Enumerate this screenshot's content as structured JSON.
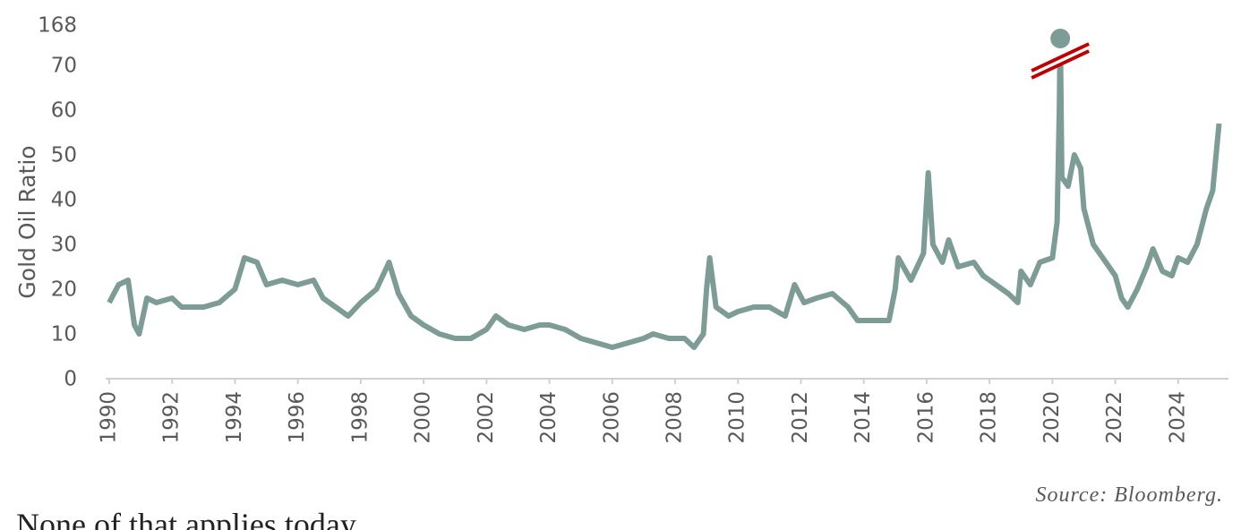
{
  "chart_data": {
    "type": "line",
    "y_label": "Gold Oil Ratio",
    "source": "Source: Bloomberg.",
    "caption": "None of that applies today.",
    "xlim": [
      1990,
      2025.6
    ],
    "xticks": [
      1990,
      1992,
      1994,
      1996,
      1998,
      2000,
      2002,
      2004,
      2006,
      2008,
      2010,
      2012,
      2014,
      2016,
      2018,
      2020,
      2022,
      2024
    ],
    "ylim": [
      0,
      168
    ],
    "yticks": [
      0,
      10,
      20,
      30,
      40,
      50,
      60,
      70,
      168
    ],
    "axis_break": [
      70,
      168
    ],
    "color": "#7d9c95",
    "break_color": "#c00000",
    "x": [
      1990.0,
      1990.3,
      1990.6,
      1990.8,
      1990.95,
      1991.2,
      1991.5,
      1992.0,
      1992.3,
      1993.0,
      1993.5,
      1994.0,
      1994.3,
      1994.7,
      1995.0,
      1995.5,
      1996.0,
      1996.5,
      1996.8,
      1997.2,
      1997.6,
      1998.0,
      1998.5,
      1998.9,
      1999.2,
      1999.6,
      2000.0,
      2000.5,
      2001.0,
      2001.5,
      2002.0,
      2002.3,
      2002.7,
      2003.2,
      2003.7,
      2004.0,
      2004.5,
      2005.0,
      2005.5,
      2006.0,
      2006.5,
      2007.0,
      2007.3,
      2007.8,
      2008.3,
      2008.6,
      2008.9,
      2009.0,
      2009.1,
      2009.3,
      2009.7,
      2010.0,
      2010.5,
      2011.0,
      2011.5,
      2011.8,
      2012.1,
      2012.5,
      2013.0,
      2013.5,
      2013.8,
      2014.3,
      2014.8,
      2015.0,
      2015.1,
      2015.5,
      2015.9,
      2016.05,
      2016.2,
      2016.5,
      2016.7,
      2017.0,
      2017.5,
      2017.8,
      2018.2,
      2018.6,
      2018.9,
      2019.0,
      2019.3,
      2019.6,
      2020.0,
      2020.15,
      2020.22,
      2020.25,
      2020.3,
      2020.5,
      2020.7,
      2020.9,
      2021.0,
      2021.3,
      2021.6,
      2022.0,
      2022.2,
      2022.4,
      2022.7,
      2023.0,
      2023.2,
      2023.5,
      2023.8,
      2024.0,
      2024.3,
      2024.6,
      2024.9,
      2025.1,
      2025.3
    ],
    "values": [
      17,
      21,
      22,
      12,
      10,
      18,
      17,
      18,
      16,
      16,
      17,
      20,
      27,
      26,
      21,
      22,
      21,
      22,
      18,
      16,
      14,
      17,
      20,
      26,
      19,
      14,
      12,
      10,
      9,
      9,
      11,
      14,
      12,
      11,
      12,
      12,
      11,
      9,
      8,
      7,
      8,
      9,
      10,
      9,
      9,
      7,
      10,
      20,
      27,
      16,
      14,
      15,
      16,
      16,
      14,
      21,
      17,
      18,
      19,
      16,
      13,
      13,
      13,
      20,
      27,
      22,
      28,
      46,
      30,
      26,
      31,
      25,
      26,
      23,
      21,
      19,
      17,
      24,
      21,
      26,
      27,
      35,
      60,
      168,
      45,
      43,
      50,
      47,
      38,
      30,
      27,
      23,
      18,
      16,
      20,
      25,
      29,
      24,
      23,
      27,
      26,
      30,
      38,
      42,
      57
    ]
  }
}
